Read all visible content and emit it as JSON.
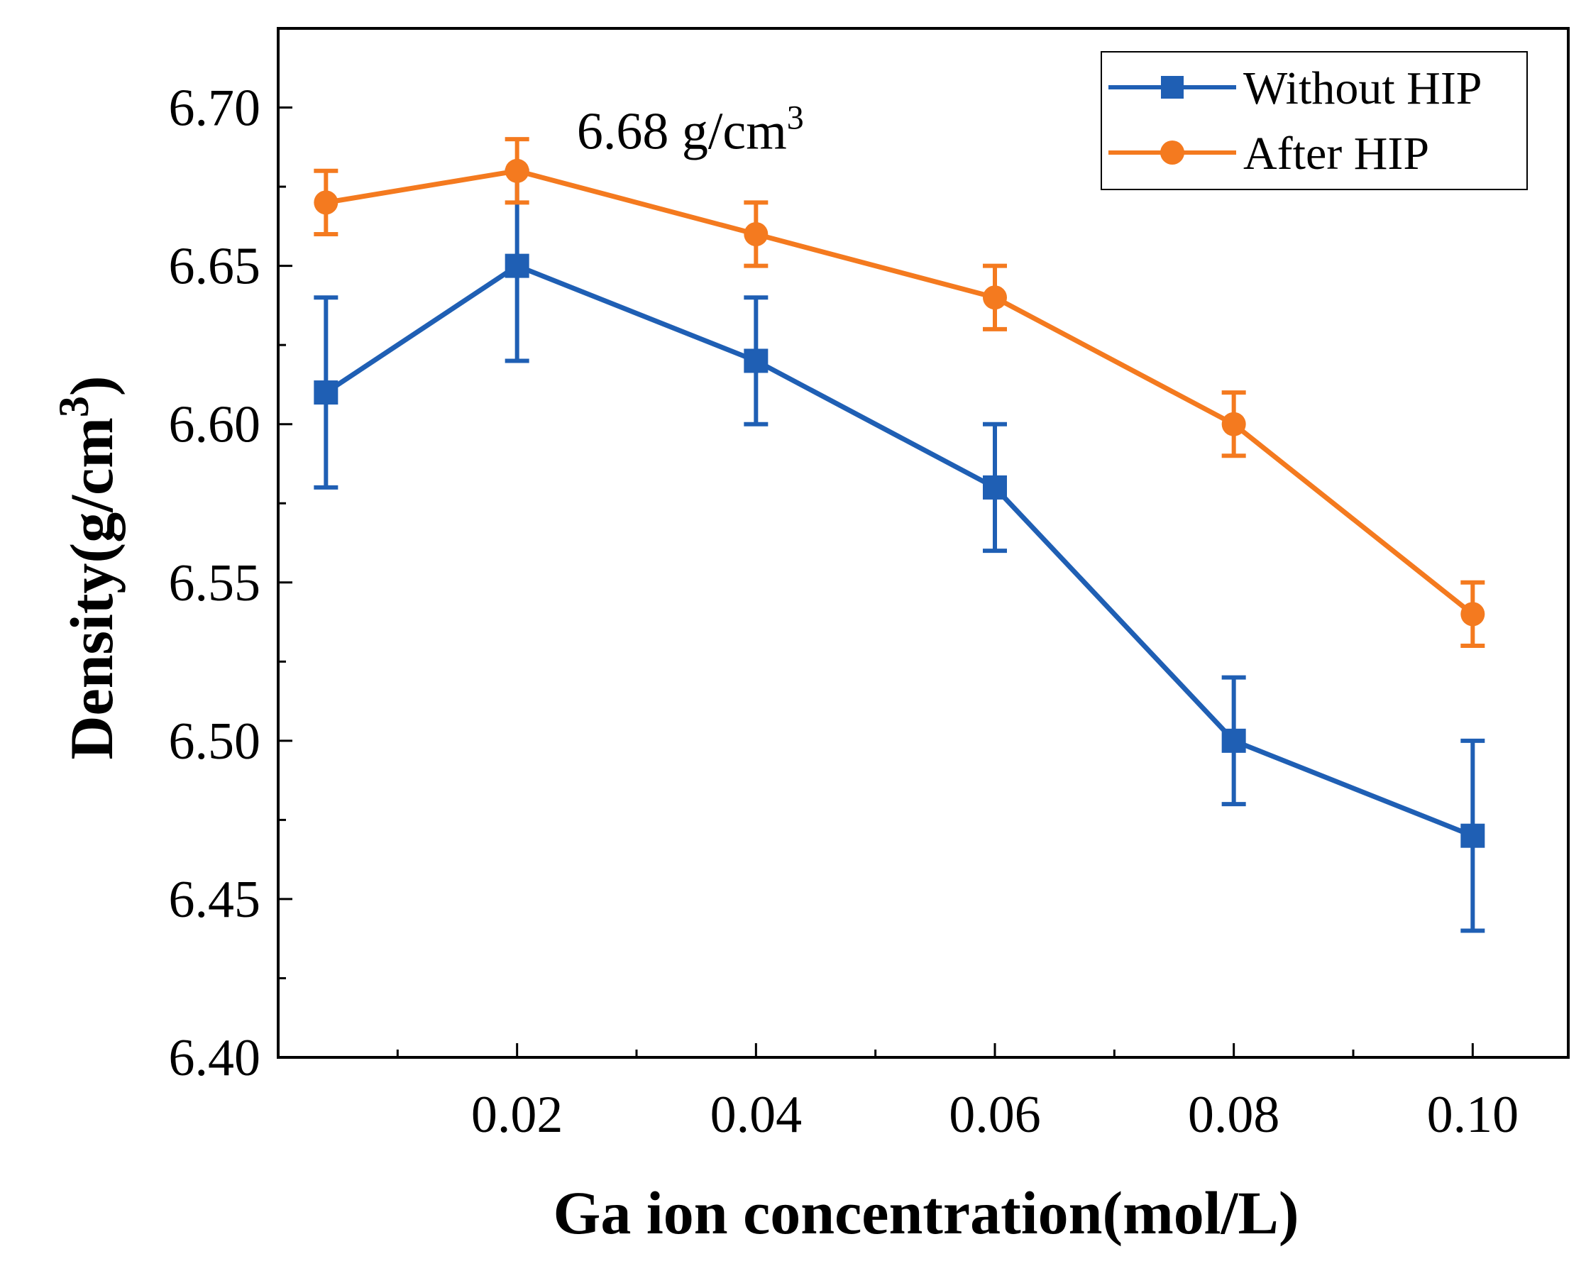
{
  "chart_data": {
    "type": "line",
    "title": "",
    "xlabel": "Ga ion concentration(mol/L)",
    "ylabel": "Density(g/cm",
    "ylabel_sup": "3",
    "xlim": [
      0.0,
      0.108
    ],
    "ylim": [
      6.4,
      6.725
    ],
    "x_major_ticks": [
      0.02,
      0.04,
      0.06,
      0.08,
      0.1
    ],
    "x_tick_labels": [
      "0.02",
      "0.04",
      "0.06",
      "0.08",
      "0.10"
    ],
    "x_minor_ticks": [
      0.01,
      0.03,
      0.05,
      0.07,
      0.09
    ],
    "y_major_ticks": [
      6.4,
      6.45,
      6.5,
      6.55,
      6.6,
      6.65,
      6.7
    ],
    "y_tick_labels": [
      "6.40",
      "6.45",
      "6.50",
      "6.55",
      "6.60",
      "6.65",
      "6.70"
    ],
    "y_minor_ticks": [
      6.425,
      6.475,
      6.525,
      6.575,
      6.625,
      6.675
    ],
    "grid": false,
    "legend_position": "top-right",
    "x": [
      0.004,
      0.02,
      0.04,
      0.06,
      0.08,
      0.1
    ],
    "series": [
      {
        "name": "Without HIP",
        "color": "#1f5fb4",
        "marker": "square",
        "values": [
          6.61,
          6.65,
          6.62,
          6.58,
          6.5,
          6.47
        ],
        "errors": [
          0.03,
          0.03,
          0.02,
          0.02,
          0.02,
          0.03
        ]
      },
      {
        "name": "After HIP",
        "color": "#f47a1f",
        "marker": "circle",
        "values": [
          6.67,
          6.68,
          6.66,
          6.64,
          6.6,
          6.54
        ],
        "errors": [
          0.01,
          0.01,
          0.01,
          0.01,
          0.01,
          0.01
        ]
      }
    ],
    "annotation": {
      "text": "6.68 g/cm",
      "sup": "3",
      "x": 0.025,
      "y": 6.687
    }
  }
}
